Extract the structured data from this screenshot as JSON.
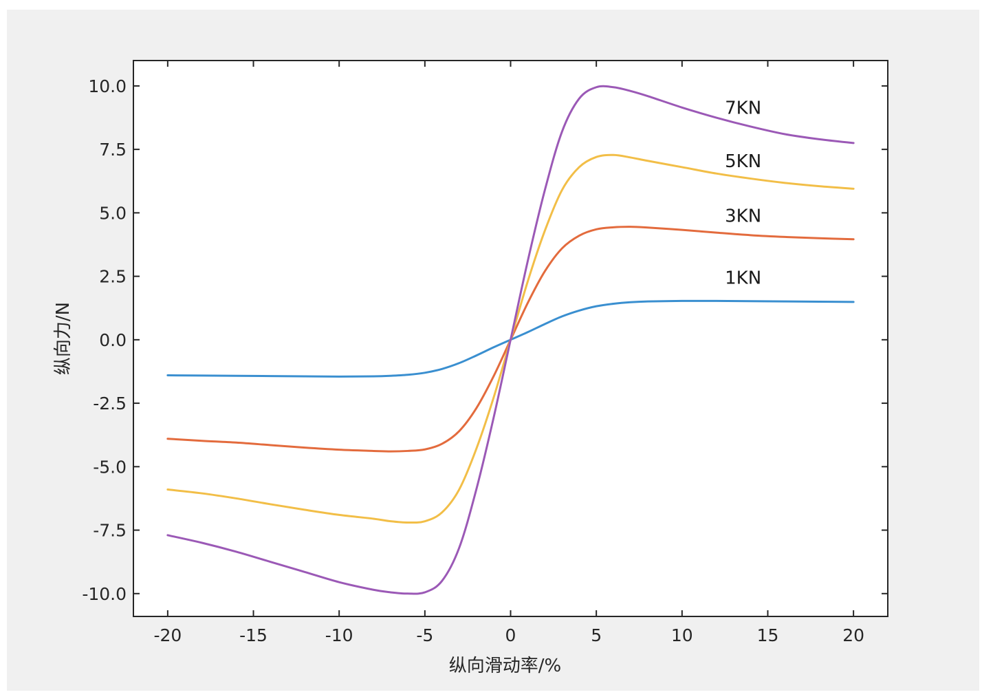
{
  "chart_data": {
    "type": "line",
    "title": "",
    "xlabel": "纵向滑动率/%",
    "ylabel": "纵向力/N",
    "xlim": [
      -22,
      22
    ],
    "ylim": [
      -10.9,
      11.0
    ],
    "xticks": [
      -20,
      -15,
      -10,
      -5,
      0,
      5,
      10,
      15,
      20
    ],
    "xtick_labels": [
      "-20",
      "-15",
      "-10",
      "-5",
      "0",
      "5",
      "10",
      "15",
      "20"
    ],
    "yticks": [
      10.0,
      7.5,
      5.0,
      2.5,
      0.0,
      -2.5,
      -5.0,
      -7.5,
      -10.0
    ],
    "ytick_labels": [
      "10.0",
      "7.5",
      "5.0",
      "2.5",
      "0.0",
      "-2.5",
      "-5.0",
      "-7.5",
      "-10.0"
    ],
    "grid": false,
    "legend": "none",
    "x": [
      -20,
      -18,
      -16,
      -14,
      -12,
      -10,
      -8,
      -7,
      -6,
      -5,
      -4,
      -3,
      -2,
      -1,
      0,
      1,
      2,
      3,
      4,
      5,
      6,
      7,
      8,
      10,
      12,
      14,
      16,
      18,
      20
    ],
    "series": [
      {
        "name": "1KN",
        "color": "#3a8fd0",
        "label_at": [
          12.5,
          2.2
        ],
        "values": [
          -1.4,
          -1.41,
          -1.42,
          -1.43,
          -1.44,
          -1.45,
          -1.44,
          -1.42,
          -1.38,
          -1.3,
          -1.15,
          -0.92,
          -0.62,
          -0.3,
          0.0,
          0.3,
          0.62,
          0.92,
          1.15,
          1.32,
          1.42,
          1.48,
          1.51,
          1.53,
          1.53,
          1.52,
          1.51,
          1.5,
          1.49
        ]
      },
      {
        "name": "3KN",
        "color": "#e36b3d",
        "label_at": [
          12.5,
          4.65
        ],
        "values": [
          -3.9,
          -3.98,
          -4.05,
          -4.15,
          -4.25,
          -4.33,
          -4.38,
          -4.4,
          -4.38,
          -4.32,
          -4.1,
          -3.6,
          -2.7,
          -1.45,
          0.0,
          1.45,
          2.7,
          3.6,
          4.1,
          4.35,
          4.43,
          4.45,
          4.42,
          4.33,
          4.22,
          4.12,
          4.05,
          4.0,
          3.96
        ]
      },
      {
        "name": "5KN",
        "color": "#f2be47",
        "label_at": [
          12.5,
          6.8
        ],
        "values": [
          -5.9,
          -6.05,
          -6.25,
          -6.48,
          -6.7,
          -6.9,
          -7.05,
          -7.15,
          -7.2,
          -7.15,
          -6.8,
          -5.9,
          -4.3,
          -2.3,
          0.0,
          2.3,
          4.3,
          5.9,
          6.8,
          7.2,
          7.28,
          7.18,
          7.05,
          6.8,
          6.55,
          6.35,
          6.18,
          6.05,
          5.95
        ]
      },
      {
        "name": "7KN",
        "color": "#9b59b6",
        "label_at": [
          12.5,
          8.9
        ],
        "values": [
          -7.7,
          -8.0,
          -8.35,
          -8.75,
          -9.15,
          -9.55,
          -9.85,
          -9.95,
          -10.0,
          -9.95,
          -9.5,
          -8.2,
          -5.9,
          -3.1,
          0.0,
          3.1,
          5.9,
          8.2,
          9.5,
          9.95,
          9.95,
          9.8,
          9.6,
          9.15,
          8.75,
          8.4,
          8.1,
          7.9,
          7.75
        ]
      }
    ]
  }
}
